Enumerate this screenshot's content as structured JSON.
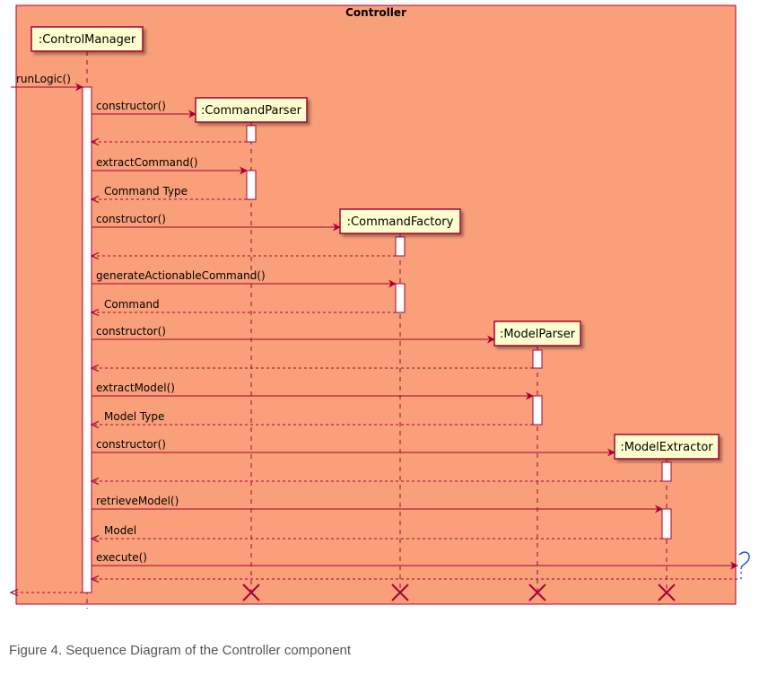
{
  "frame": {
    "title": "Controller"
  },
  "participants": [
    {
      "id": "cm",
      "label": ":ControlManager"
    },
    {
      "id": "cp",
      "label": ":CommandParser"
    },
    {
      "id": "cf",
      "label": ":CommandFactory"
    },
    {
      "id": "mp",
      "label": ":ModelParser"
    },
    {
      "id": "me",
      "label": ":ModelExtractor"
    }
  ],
  "messages": [
    {
      "from": "ext",
      "to": "cm",
      "label": "runLogic()",
      "type": "sync"
    },
    {
      "from": "cm",
      "to": "cp",
      "label": "constructor()",
      "type": "create"
    },
    {
      "from": "cp",
      "to": "cm",
      "label": "",
      "type": "return"
    },
    {
      "from": "cm",
      "to": "cp",
      "label": "extractCommand()",
      "type": "sync"
    },
    {
      "from": "cp",
      "to": "cm",
      "label": "Command Type",
      "type": "return"
    },
    {
      "from": "cm",
      "to": "cf",
      "label": "constructor()",
      "type": "create"
    },
    {
      "from": "cf",
      "to": "cm",
      "label": "",
      "type": "return"
    },
    {
      "from": "cm",
      "to": "cf",
      "label": "generateActionableCommand()",
      "type": "sync"
    },
    {
      "from": "cf",
      "to": "cm",
      "label": "Command",
      "type": "return"
    },
    {
      "from": "cm",
      "to": "mp",
      "label": "constructor()",
      "type": "create"
    },
    {
      "from": "mp",
      "to": "cm",
      "label": "",
      "type": "return"
    },
    {
      "from": "cm",
      "to": "mp",
      "label": "extractModel()",
      "type": "sync"
    },
    {
      "from": "mp",
      "to": "cm",
      "label": "Model Type",
      "type": "return"
    },
    {
      "from": "cm",
      "to": "me",
      "label": "constructor()",
      "type": "create"
    },
    {
      "from": "me",
      "to": "cm",
      "label": "",
      "type": "return"
    },
    {
      "from": "cm",
      "to": "me",
      "label": "retrieveModel()",
      "type": "sync"
    },
    {
      "from": "me",
      "to": "cm",
      "label": "Model",
      "type": "return"
    },
    {
      "from": "cm",
      "to": "ext",
      "label": "execute()",
      "type": "sync"
    },
    {
      "from": "ext",
      "to": "cm",
      "label": "",
      "type": "return"
    },
    {
      "from": "cm",
      "to": "ext",
      "label": "",
      "type": "return"
    }
  ],
  "caption": "Figure 4. Sequence Diagram of the Controller component",
  "colors": {
    "frame_fill": "#F9A07A",
    "frame_border": "#A80036",
    "participant_fill": "#FEFECE",
    "arrow": "#A80036",
    "destroy": "#A80036",
    "lifeline": "#A80036",
    "caption_text": "#555555"
  }
}
